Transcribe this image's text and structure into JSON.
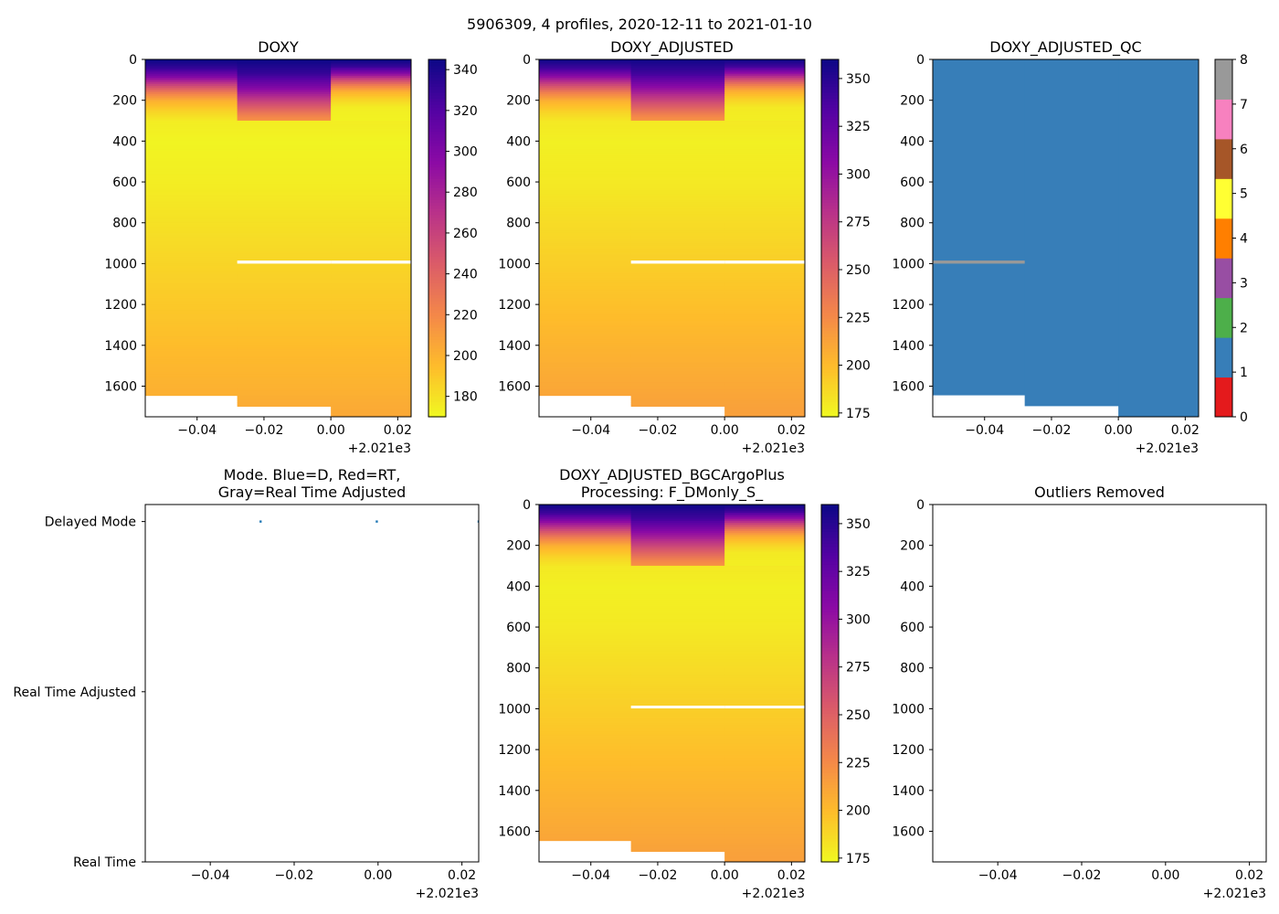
{
  "suptitle": "5906309, 4 profiles, 2020-12-11 to 2021-01-10",
  "colors": {
    "white_gap": "#ffffff",
    "qc_palette": [
      "#e41a1c",
      "#377eb8",
      "#4daf4a",
      "#984ea3",
      "#ff7f00",
      "#ffff33",
      "#a65628",
      "#f781bf",
      "#999999"
    ],
    "mode_dot": "#1f77b4"
  },
  "chart_data": [
    {
      "id": "doxy",
      "type": "heatmap",
      "title": "DOXY",
      "colormap": "plasma_r",
      "x_offset_label": "+2.021e3",
      "xlim": [
        -0.0555,
        0.024
      ],
      "ylim": [
        1750,
        0
      ],
      "x_ticks": [
        -0.04,
        -0.02,
        0.0,
        0.02
      ],
      "x_tick_labels": [
        "−0.04",
        "−0.02",
        "0.00",
        "0.02"
      ],
      "y_ticks": [
        0,
        200,
        400,
        600,
        800,
        1000,
        1200,
        1400,
        1600
      ],
      "y_tick_labels": [
        "0",
        "200",
        "400",
        "600",
        "800",
        "1000",
        "1200",
        "1400",
        "1600"
      ],
      "colorbar": {
        "range": [
          170,
          345
        ],
        "ticks": [
          180,
          200,
          220,
          240,
          260,
          280,
          300,
          320,
          340
        ],
        "tick_labels": [
          "180",
          "200",
          "220",
          "240",
          "260",
          "280",
          "300",
          "320",
          "340"
        ]
      },
      "profile_edges": [
        -0.0555,
        -0.028,
        0.0,
        0.024
      ],
      "profile_max_depth": [
        1645,
        1698,
        1750
      ],
      "gap_band": [
        985,
        1000
      ],
      "gap_profiles": [
        1,
        2
      ],
      "profile_shallow_scale": [
        1.0,
        0.6,
        1.3
      ],
      "depth_nodes": [
        0,
        40,
        80,
        120,
        160,
        200,
        250,
        300,
        400,
        600,
        800,
        1000,
        1200,
        1400,
        1600,
        1750
      ],
      "value_nodes": [
        345,
        330,
        300,
        260,
        225,
        200,
        185,
        175,
        172,
        175,
        180,
        185,
        190,
        195,
        200,
        205
      ]
    },
    {
      "id": "doxy_adj",
      "type": "heatmap",
      "title": "DOXY_ADJUSTED",
      "colormap": "plasma_r",
      "x_offset_label": "+2.021e3",
      "xlim": [
        -0.0555,
        0.024
      ],
      "ylim": [
        1750,
        0
      ],
      "x_ticks": [
        -0.04,
        -0.02,
        0.0,
        0.02
      ],
      "x_tick_labels": [
        "−0.04",
        "−0.02",
        "0.00",
        "0.02"
      ],
      "y_ticks": [
        0,
        200,
        400,
        600,
        800,
        1000,
        1200,
        1400,
        1600
      ],
      "y_tick_labels": [
        "0",
        "200",
        "400",
        "600",
        "800",
        "1000",
        "1200",
        "1400",
        "1600"
      ],
      "colorbar": {
        "range": [
          173,
          360
        ],
        "ticks": [
          175,
          200,
          225,
          250,
          275,
          300,
          325,
          350
        ],
        "tick_labels": [
          "175",
          "200",
          "225",
          "250",
          "275",
          "300",
          "325",
          "350"
        ]
      },
      "profile_edges": [
        -0.0555,
        -0.028,
        0.0,
        0.024
      ],
      "profile_max_depth": [
        1645,
        1698,
        1750
      ],
      "gap_band": [
        985,
        1000
      ],
      "gap_profiles": [
        1,
        2
      ],
      "profile_shallow_scale": [
        1.0,
        0.6,
        1.3
      ],
      "depth_nodes": [
        0,
        40,
        80,
        120,
        160,
        200,
        250,
        300,
        400,
        600,
        800,
        1000,
        1200,
        1400,
        1600,
        1750
      ],
      "value_nodes": [
        358,
        340,
        305,
        265,
        230,
        205,
        190,
        180,
        177,
        180,
        186,
        192,
        198,
        204,
        210,
        215
      ]
    },
    {
      "id": "doxy_qc",
      "type": "heatmap",
      "title": "DOXY_ADJUSTED_QC",
      "colormap": "qc",
      "x_offset_label": "+2.021e3",
      "xlim": [
        -0.0555,
        0.024
      ],
      "ylim": [
        1750,
        0
      ],
      "x_ticks": [
        -0.04,
        -0.02,
        0.0,
        0.02
      ],
      "x_tick_labels": [
        "−0.04",
        "−0.02",
        "0.00",
        "0.02"
      ],
      "y_ticks": [
        0,
        200,
        400,
        600,
        800,
        1000,
        1200,
        1400,
        1600
      ],
      "y_tick_labels": [
        "0",
        "200",
        "400",
        "600",
        "800",
        "1000",
        "1200",
        "1400",
        "1600"
      ],
      "colorbar": {
        "range": [
          0,
          8
        ],
        "ticks": [
          0,
          1,
          2,
          3,
          4,
          5,
          6,
          7,
          8
        ],
        "tick_labels": [
          "0",
          "1",
          "2",
          "3",
          "4",
          "5",
          "6",
          "7",
          "8"
        ]
      },
      "profile_edges": [
        -0.0555,
        -0.028,
        0.0,
        0.024
      ],
      "profile_max_depth": [
        1645,
        1698,
        1750
      ],
      "qc_value": 1,
      "qc_flag_band": {
        "depth": [
          985,
          1000
        ],
        "x": [
          -0.0555,
          -0.028
        ],
        "value": 8
      }
    },
    {
      "id": "mode",
      "type": "scatter",
      "title_lines": [
        "Mode. Blue=D, Red=RT,",
        "Gray=Real Time Adjusted"
      ],
      "x_offset_label": "+2.021e3",
      "xlim": [
        -0.0555,
        0.024
      ],
      "x_ticks": [
        -0.04,
        -0.02,
        0.0,
        0.02
      ],
      "x_tick_labels": [
        "−0.04",
        "−0.02",
        "0.00",
        "0.02"
      ],
      "categories": [
        "Real Time",
        "Real Time Adjusted",
        "Delayed Mode"
      ],
      "ylim": [
        0,
        2.1
      ],
      "points": [
        {
          "x": -0.028,
          "y": 2,
          "mode": "Delayed Mode"
        },
        {
          "x": -0.0003,
          "y": 2,
          "mode": "Delayed Mode"
        },
        {
          "x": 0.024,
          "y": 2,
          "mode": "Delayed Mode"
        }
      ]
    },
    {
      "id": "doxy_plus",
      "type": "heatmap",
      "title_lines": [
        "DOXY_ADJUSTED_BGCArgoPlus",
        "Processing: F_DMonly_S_"
      ],
      "colormap": "plasma_r",
      "x_offset_label": "+2.021e3",
      "xlim": [
        -0.0555,
        0.024
      ],
      "ylim": [
        1750,
        0
      ],
      "x_ticks": [
        -0.04,
        -0.02,
        0.0,
        0.02
      ],
      "x_tick_labels": [
        "−0.04",
        "−0.02",
        "0.00",
        "0.02"
      ],
      "y_ticks": [
        0,
        200,
        400,
        600,
        800,
        1000,
        1200,
        1400,
        1600
      ],
      "y_tick_labels": [
        "0",
        "200",
        "400",
        "600",
        "800",
        "1000",
        "1200",
        "1400",
        "1600"
      ],
      "colorbar": {
        "range": [
          173,
          360
        ],
        "ticks": [
          175,
          200,
          225,
          250,
          275,
          300,
          325,
          350
        ],
        "tick_labels": [
          "175",
          "200",
          "225",
          "250",
          "275",
          "300",
          "325",
          "350"
        ]
      },
      "profile_edges": [
        -0.0555,
        -0.028,
        0.0,
        0.024
      ],
      "profile_max_depth": [
        1645,
        1698,
        1750
      ],
      "gap_band": [
        985,
        995
      ],
      "gap_profiles": [
        1,
        2
      ],
      "profile_shallow_scale": [
        1.0,
        0.6,
        1.3
      ],
      "depth_nodes": [
        0,
        40,
        80,
        120,
        160,
        200,
        250,
        300,
        400,
        600,
        800,
        1000,
        1200,
        1400,
        1600,
        1750
      ],
      "value_nodes": [
        358,
        340,
        305,
        265,
        230,
        205,
        190,
        180,
        177,
        180,
        186,
        192,
        198,
        204,
        210,
        215
      ]
    },
    {
      "id": "outliers",
      "type": "scatter",
      "title": "Outliers Removed",
      "x_offset_label": "+2.021e3",
      "xlim": [
        -0.0555,
        0.024
      ],
      "ylim": [
        1750,
        0
      ],
      "x_ticks": [
        -0.04,
        -0.02,
        0.0,
        0.02
      ],
      "x_tick_labels": [
        "−0.04",
        "−0.02",
        "0.00",
        "0.02"
      ],
      "y_ticks": [
        0,
        200,
        400,
        600,
        800,
        1000,
        1200,
        1400,
        1600
      ],
      "y_tick_labels": [
        "0",
        "200",
        "400",
        "600",
        "800",
        "1000",
        "1200",
        "1400",
        "1600"
      ],
      "points": []
    }
  ]
}
